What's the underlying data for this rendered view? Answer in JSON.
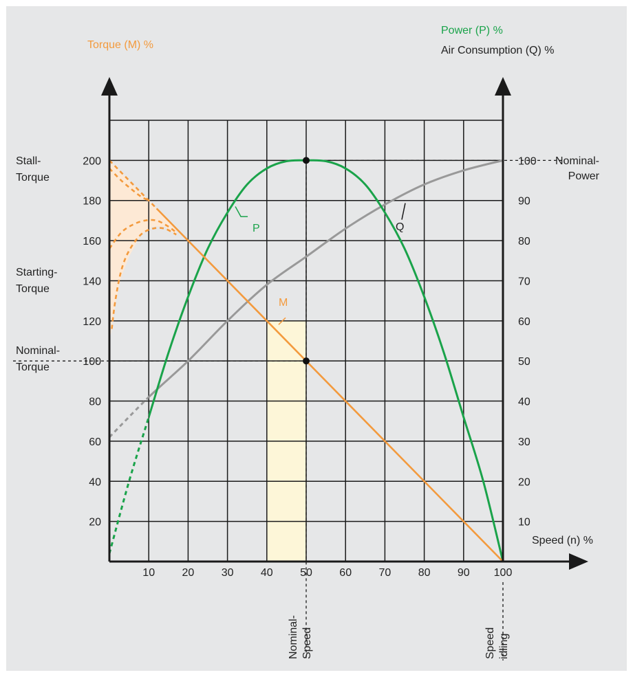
{
  "chart_data": {
    "type": "line",
    "title": "",
    "left_axis_title": "Torque (M) %",
    "right_axis_title_1": "Power (P) %",
    "right_axis_title_2": "Air Consumption (Q) %",
    "xlabel": "Speed (n) %",
    "xlim": [
      0,
      100
    ],
    "ylim_left": [
      0,
      200
    ],
    "ylim_right": [
      0,
      100
    ],
    "x_ticks": [
      "10",
      "20",
      "30",
      "40",
      "50",
      "60",
      "70",
      "80",
      "90",
      "100"
    ],
    "y_left_ticks": [
      "20",
      "40",
      "60",
      "80",
      "100",
      "120",
      "140",
      "160",
      "180",
      "200"
    ],
    "y_right_ticks": [
      "10",
      "20",
      "30",
      "40",
      "50",
      "60",
      "70",
      "80",
      "90",
      "100"
    ],
    "grid": true,
    "series": [
      {
        "name": "M",
        "axis": "left",
        "color": "#f39a3d",
        "x": [
          0,
          10,
          20,
          30,
          40,
          50,
          60,
          70,
          80,
          90,
          100
        ],
        "y": [
          200,
          180,
          160,
          140,
          120,
          100,
          80,
          60,
          40,
          20,
          0
        ]
      },
      {
        "name": "P",
        "axis": "right",
        "color": "#1aa34a",
        "x": [
          0,
          5,
          10,
          15,
          20,
          25,
          30,
          35,
          40,
          45,
          50,
          55,
          60,
          65,
          70,
          75,
          80,
          85,
          90,
          95,
          100
        ],
        "y": [
          2,
          20,
          36,
          52,
          66,
          78,
          87,
          94,
          98,
          99.8,
          100,
          99.8,
          98,
          94,
          87,
          78,
          66,
          52,
          36,
          20,
          0
        ]
      },
      {
        "name": "Q",
        "axis": "right",
        "color": "#999999",
        "x": [
          0,
          10,
          20,
          30,
          40,
          50,
          60,
          70,
          80,
          90,
          100
        ],
        "y": [
          31,
          41,
          50,
          60,
          69,
          76,
          83,
          89,
          94,
          97.5,
          100
        ]
      }
    ],
    "annotations": {
      "stall_torque": "Stall-\nTorque",
      "starting_torque": "Starting-\nTorque",
      "nominal_torque": "Nominal-\nTorque",
      "nominal_power": "Nominal-\nPower",
      "nominal_speed": "Nominal-\nSpeed",
      "speed_idling": "Speed\nidling",
      "label_P": "P",
      "label_Q": "Q",
      "label_M": "M"
    }
  }
}
